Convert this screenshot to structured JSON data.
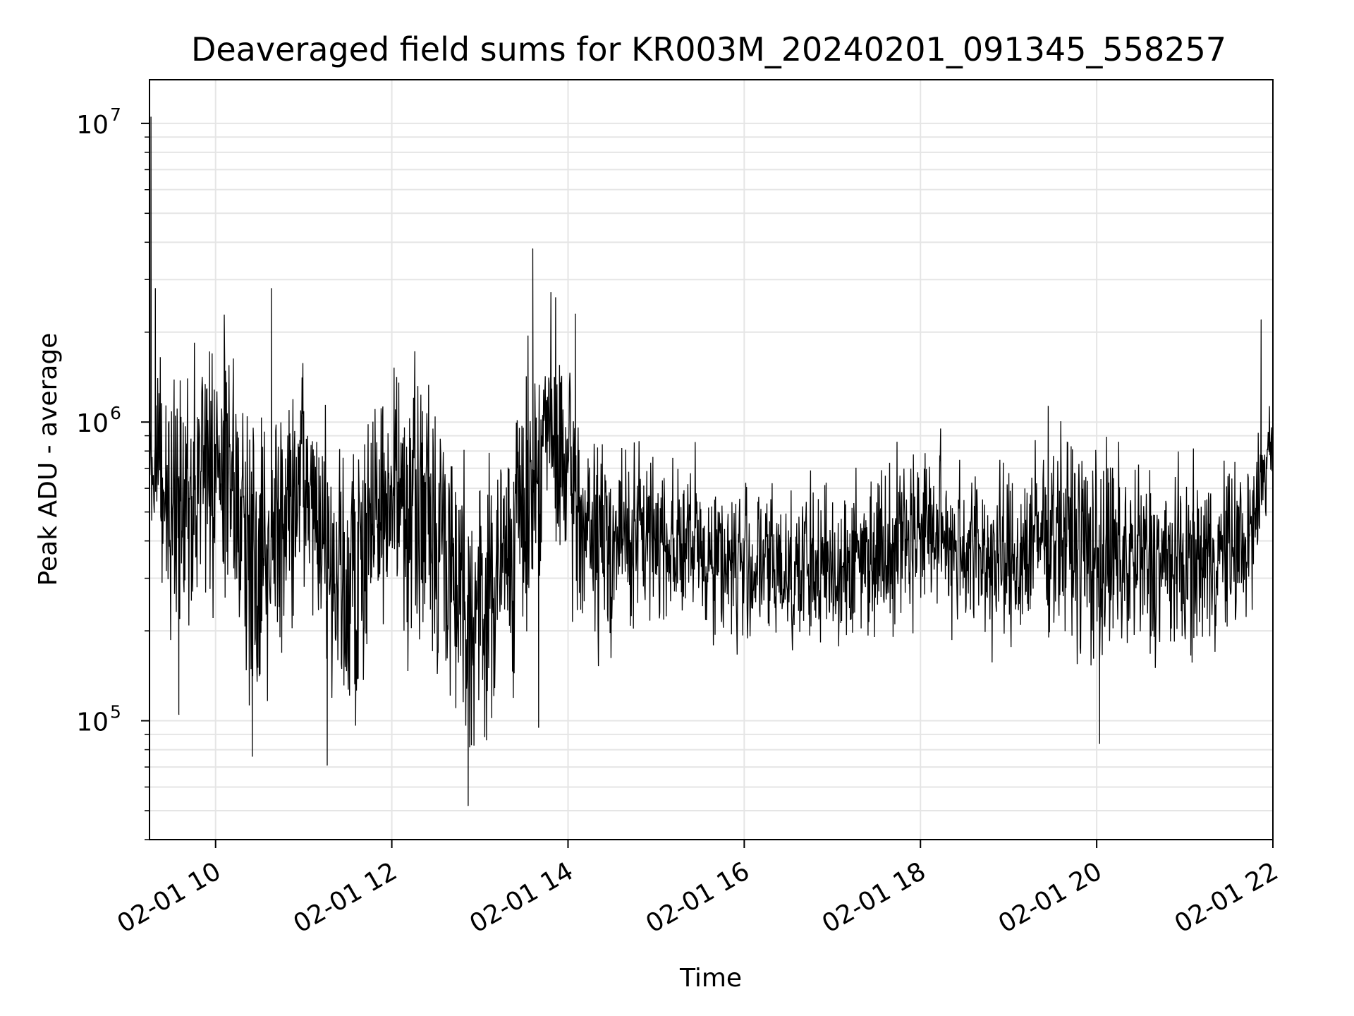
{
  "chart_data": {
    "type": "line",
    "title": "Deaveraged field sums for KR003M_20240201_091345_558257",
    "xlabel": "Time",
    "ylabel": "Peak ADU - average",
    "yscale": "log",
    "grid": true,
    "legend": "none",
    "line_color": "#000000",
    "grid_color": "#e5e5e5",
    "xlim": [
      "2024-02-01 09:15",
      "2024-02-01 22:00"
    ],
    "ylim": [
      40000,
      14000000
    ],
    "x_ticks": [
      {
        "value": "2024-02-01 10:00",
        "label": "02-01 10"
      },
      {
        "value": "2024-02-01 12:00",
        "label": "02-01 12"
      },
      {
        "value": "2024-02-01 14:00",
        "label": "02-01 14"
      },
      {
        "value": "2024-02-01 16:00",
        "label": "02-01 16"
      },
      {
        "value": "2024-02-01 18:00",
        "label": "02-01 18"
      },
      {
        "value": "2024-02-01 20:00",
        "label": "02-01 20"
      },
      {
        "value": "2024-02-01 22:00",
        "label": "02-01 22"
      }
    ],
    "y_ticks": [
      {
        "value": 100000,
        "base": "10",
        "exp": "5"
      },
      {
        "value": 1000000,
        "base": "10",
        "exp": "6"
      },
      {
        "value": 10000000,
        "base": "10",
        "exp": "7"
      }
    ],
    "envelope": {
      "note_times": "sampled envelope of the dense trace",
      "x": [
        "2024-02-01 09:15",
        "2024-02-01 09:30",
        "2024-02-01 10:00",
        "2024-02-01 10:30",
        "2024-02-01 11:00",
        "2024-02-01 11:30",
        "2024-02-01 12:00",
        "2024-02-01 12:30",
        "2024-02-01 13:00",
        "2024-02-01 13:30",
        "2024-02-01 13:45",
        "2024-02-01 14:15",
        "2024-02-01 15:00",
        "2024-02-01 16:00",
        "2024-02-01 17:00",
        "2024-02-01 18:00",
        "2024-02-01 19:00",
        "2024-02-01 19:30",
        "2024-02-01 20:00",
        "2024-02-01 21:00",
        "2024-02-01 21:45",
        "2024-02-01 22:00"
      ],
      "center": [
        800000,
        500000,
        800000,
        350000,
        600000,
        250000,
        600000,
        450000,
        220000,
        500000,
        1000000,
        400000,
        420000,
        330000,
        320000,
        450000,
        330000,
        450000,
        350000,
        330000,
        400000,
        950000
      ],
      "spread": [
        1.8,
        2.6,
        2.4,
        2.7,
        2.0,
        2.6,
        2.1,
        2.5,
        2.4,
        2.3,
        2.1,
        2.0,
        1.7,
        1.7,
        1.7,
        1.7,
        1.8,
        1.9,
        2.1,
        1.8,
        1.7,
        1.4
      ]
    },
    "notable_points": [
      {
        "x": "2024-02-01 09:15",
        "y": 1100000
      },
      {
        "x": "2024-02-01 09:16",
        "y": 10500000
      },
      {
        "x": "2024-02-01 09:19",
        "y": 2800000
      },
      {
        "x": "2024-02-01 09:35",
        "y": 105000
      },
      {
        "x": "2024-02-01 10:25",
        "y": 76000
      },
      {
        "x": "2024-02-01 10:38",
        "y": 2800000
      },
      {
        "x": "2024-02-01 11:16",
        "y": 71000
      },
      {
        "x": "2024-02-01 12:52",
        "y": 52000
      },
      {
        "x": "2024-02-01 13:36",
        "y": 3800000
      },
      {
        "x": "2024-02-01 13:40",
        "y": 95000
      },
      {
        "x": "2024-02-01 14:05",
        "y": 2300000
      },
      {
        "x": "2024-02-01 20:02",
        "y": 84000
      },
      {
        "x": "2024-02-01 21:52",
        "y": 2200000
      },
      {
        "x": "2024-02-01 22:00",
        "y": 650000
      }
    ]
  }
}
